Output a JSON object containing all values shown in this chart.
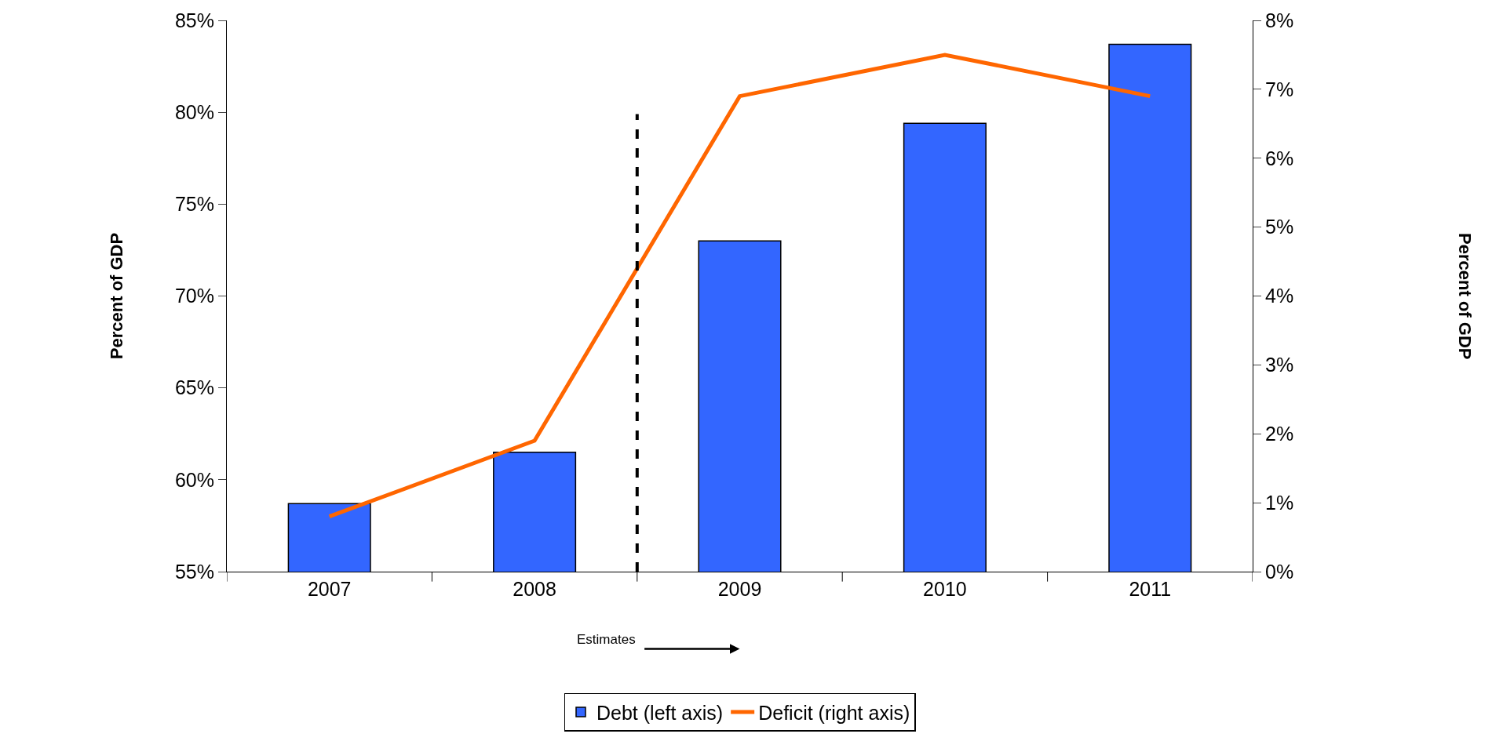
{
  "chart_data": {
    "type": "bar",
    "categories": [
      "2007",
      "2008",
      "2009",
      "2010",
      "2011"
    ],
    "series": [
      {
        "name": "Debt (left axis)",
        "color": "#3366ff",
        "values": [
          58.7,
          61.5,
          73.0,
          79.4,
          83.7
        ]
      },
      {
        "name": "Deficit (right axis)",
        "type": "line",
        "axis": "y2",
        "color": "#ff6600",
        "values": [
          0.8,
          1.9,
          6.9,
          7.5,
          6.9
        ]
      }
    ],
    "ylabel": "Percent of GDP",
    "ylim": [
      55,
      85
    ],
    "yticks": [
      {
        "value": 55,
        "label": "55%"
      },
      {
        "value": 60,
        "label": "60%"
      },
      {
        "value": 65,
        "label": "65%"
      },
      {
        "value": 70,
        "label": "70%"
      },
      {
        "value": 75,
        "label": "75%"
      },
      {
        "value": 80,
        "label": "80%"
      },
      {
        "value": 85,
        "label": "85%"
      }
    ],
    "y2lim": [
      0,
      8
    ],
    "y2ticks": [
      {
        "value": 0,
        "label": "0%"
      },
      {
        "value": 1,
        "label": "1%"
      },
      {
        "value": 2,
        "label": "2%"
      },
      {
        "value": 3,
        "label": "3%"
      },
      {
        "value": 4,
        "label": "4%"
      },
      {
        "value": 5,
        "label": "5%"
      },
      {
        "value": 6,
        "label": "6%"
      },
      {
        "value": 7,
        "label": "7%"
      },
      {
        "value": 8,
        "label": "8%"
      }
    ],
    "annotations": [
      "Estimates",
      "Percent of GDP"
    ],
    "legend": "bottom",
    "line_style": "solid",
    "marker": "none"
  }
}
